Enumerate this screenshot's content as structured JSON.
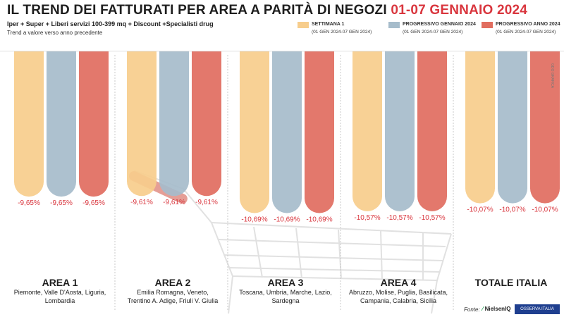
{
  "header": {
    "title_main": "IL TREND DEI FATTURATI PER AREA A PARITÀ DI NEGOZI",
    "title_period": "01-07 GENNAIO 2024",
    "subtitle": "Iper + Super + Liberi servizi 100-399 mq + Discount +Specialisti drug",
    "note": "Trend a valore verso anno precedente"
  },
  "legend": [
    {
      "label": "SETTIMANA 1",
      "dates": "(01 GEN 2024-07 GEN 2024)",
      "color": "#f7cd8c"
    },
    {
      "label": "PROGRESSIVO GENNAIO 2024",
      "dates": "(01 GEN 2024-07 GEN 2024)",
      "color": "#a6bccb"
    },
    {
      "label": "PROGRESSIVO ANNO 2024",
      "dates": "(01 GEN 2024-07 GEN 2024)",
      "color": "#e16d5f"
    }
  ],
  "credit": "GDO GRAFICA",
  "footer": {
    "source_label": "Fonte:",
    "logo1": "NielsenIQ",
    "logo2": "OSSERVA ITALIA"
  },
  "chart_data": {
    "type": "bar",
    "title": "IL TREND DEI FATTURATI PER AREA A PARITÀ DI NEGOZI 01-07 GENNAIO 2024",
    "ylabel": "Trend a valore verso anno precedente (%)",
    "ylim": [
      -15,
      0
    ],
    "series_names": [
      "SETTIMANA 1",
      "PROGRESSIVO GENNAIO 2024",
      "PROGRESSIVO ANNO 2024"
    ],
    "groups": [
      {
        "name": "AREA 1",
        "regions": [
          "Piemonte, Valle D'Aosta, Liguria,",
          "Lombardia"
        ],
        "values": [
          -9.65,
          -9.65,
          -9.65
        ],
        "labels": [
          "-9,65%",
          "-9,65%",
          "-9,65%"
        ]
      },
      {
        "name": "AREA 2",
        "regions": [
          "Emilia Romagna, Veneto,",
          "Trentino A. Adige, Friuli V. Giulia"
        ],
        "values": [
          -9.61,
          -9.61,
          -9.61
        ],
        "labels": [
          "-9,61%",
          "-9,61%",
          "-9,61%"
        ]
      },
      {
        "name": "AREA 3",
        "regions": [
          "Toscana, Umbria, Marche, Lazio,",
          "Sardegna"
        ],
        "values": [
          -10.69,
          -10.69,
          -10.69
        ],
        "labels": [
          "-10,69%",
          "-10,69%",
          "-10,69%"
        ]
      },
      {
        "name": "AREA 4",
        "regions": [
          "Abruzzo, Molise, Puglia, Basilicata,",
          "Campania, Calabria, Sicilia"
        ],
        "values": [
          -10.57,
          -10.57,
          -10.57
        ],
        "labels": [
          "-10,57%",
          "-10,57%",
          "-10,57%"
        ]
      },
      {
        "name": "TOTALE ITALIA",
        "regions": [],
        "values": [
          -10.07,
          -10.07,
          -10.07
        ],
        "labels": [
          "-10,07%",
          "-10,07%",
          "-10,07%"
        ]
      }
    ]
  }
}
